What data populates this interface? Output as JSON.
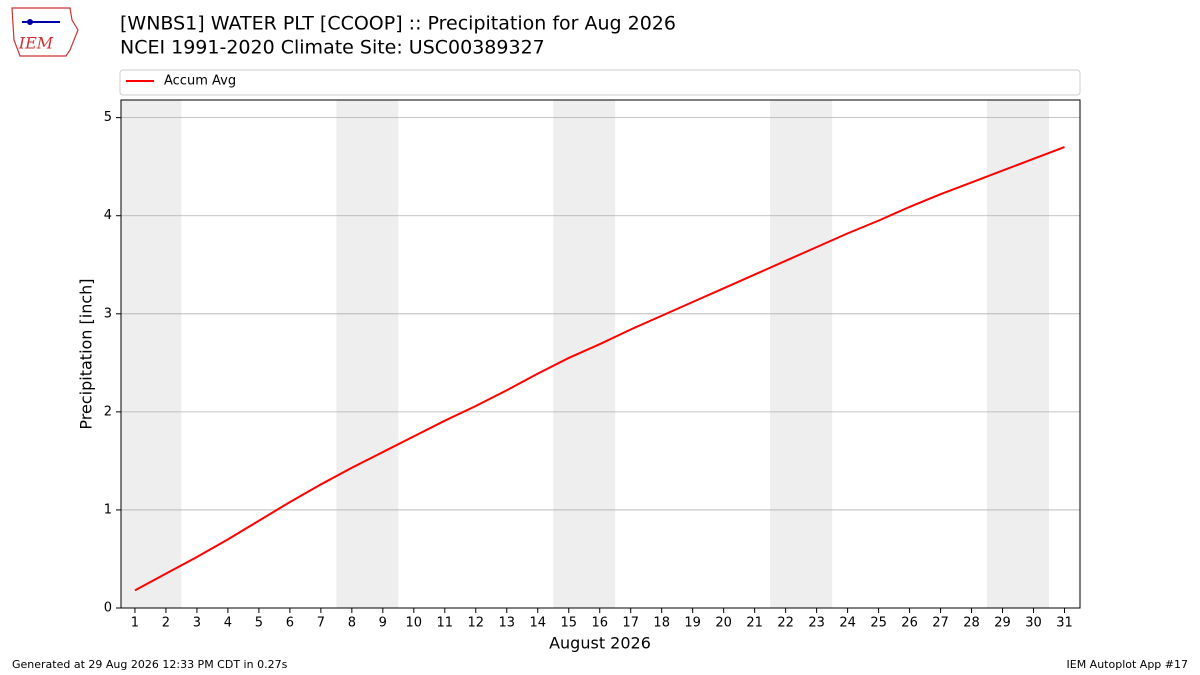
{
  "chart_data": {
    "type": "line",
    "title": "[WNBS1] WATER PLT [CCOOP] :: Precipitation for Aug 2026",
    "subtitle": "NCEI 1991-2020 Climate Site: USC00389327",
    "logo_text": "IEM",
    "xlabel": "August 2026",
    "ylabel": "Precipitation [inch]",
    "x": [
      1,
      2,
      3,
      4,
      5,
      6,
      7,
      8,
      9,
      10,
      11,
      12,
      13,
      14,
      15,
      16,
      17,
      18,
      19,
      20,
      21,
      22,
      23,
      24,
      25,
      26,
      27,
      28,
      29,
      30,
      31
    ],
    "series": [
      {
        "name": "Accum Avg",
        "color": "#ff0000",
        "values": [
          0.18,
          0.35,
          0.52,
          0.7,
          0.89,
          1.08,
          1.26,
          1.43,
          1.59,
          1.75,
          1.91,
          2.06,
          2.22,
          2.39,
          2.55,
          2.69,
          2.84,
          2.98,
          3.12,
          3.26,
          3.4,
          3.54,
          3.68,
          3.82,
          3.95,
          4.09,
          4.22,
          4.34,
          4.46,
          4.58,
          4.7
        ]
      }
    ],
    "shaded_spans": [
      [
        0.5,
        2.5
      ],
      [
        7.5,
        9.5
      ],
      [
        14.5,
        16.5
      ],
      [
        21.5,
        23.5
      ],
      [
        28.5,
        30.5
      ]
    ],
    "shade_color": "#eeeeee",
    "xlim": [
      0.55,
      31.5
    ],
    "xticks": [
      1,
      2,
      3,
      4,
      5,
      6,
      7,
      8,
      9,
      10,
      11,
      12,
      13,
      14,
      15,
      16,
      17,
      18,
      19,
      20,
      21,
      22,
      23,
      24,
      25,
      26,
      27,
      28,
      29,
      30,
      31
    ],
    "ylim": [
      0,
      5.18
    ],
    "yticks": [
      0,
      1,
      2,
      3,
      4,
      5
    ],
    "grid": true,
    "legend": "top",
    "footer_left": "Generated at 29 Aug 2026 12:33 PM CDT in 0.27s",
    "footer_right": "IEM Autoplot App #17"
  }
}
